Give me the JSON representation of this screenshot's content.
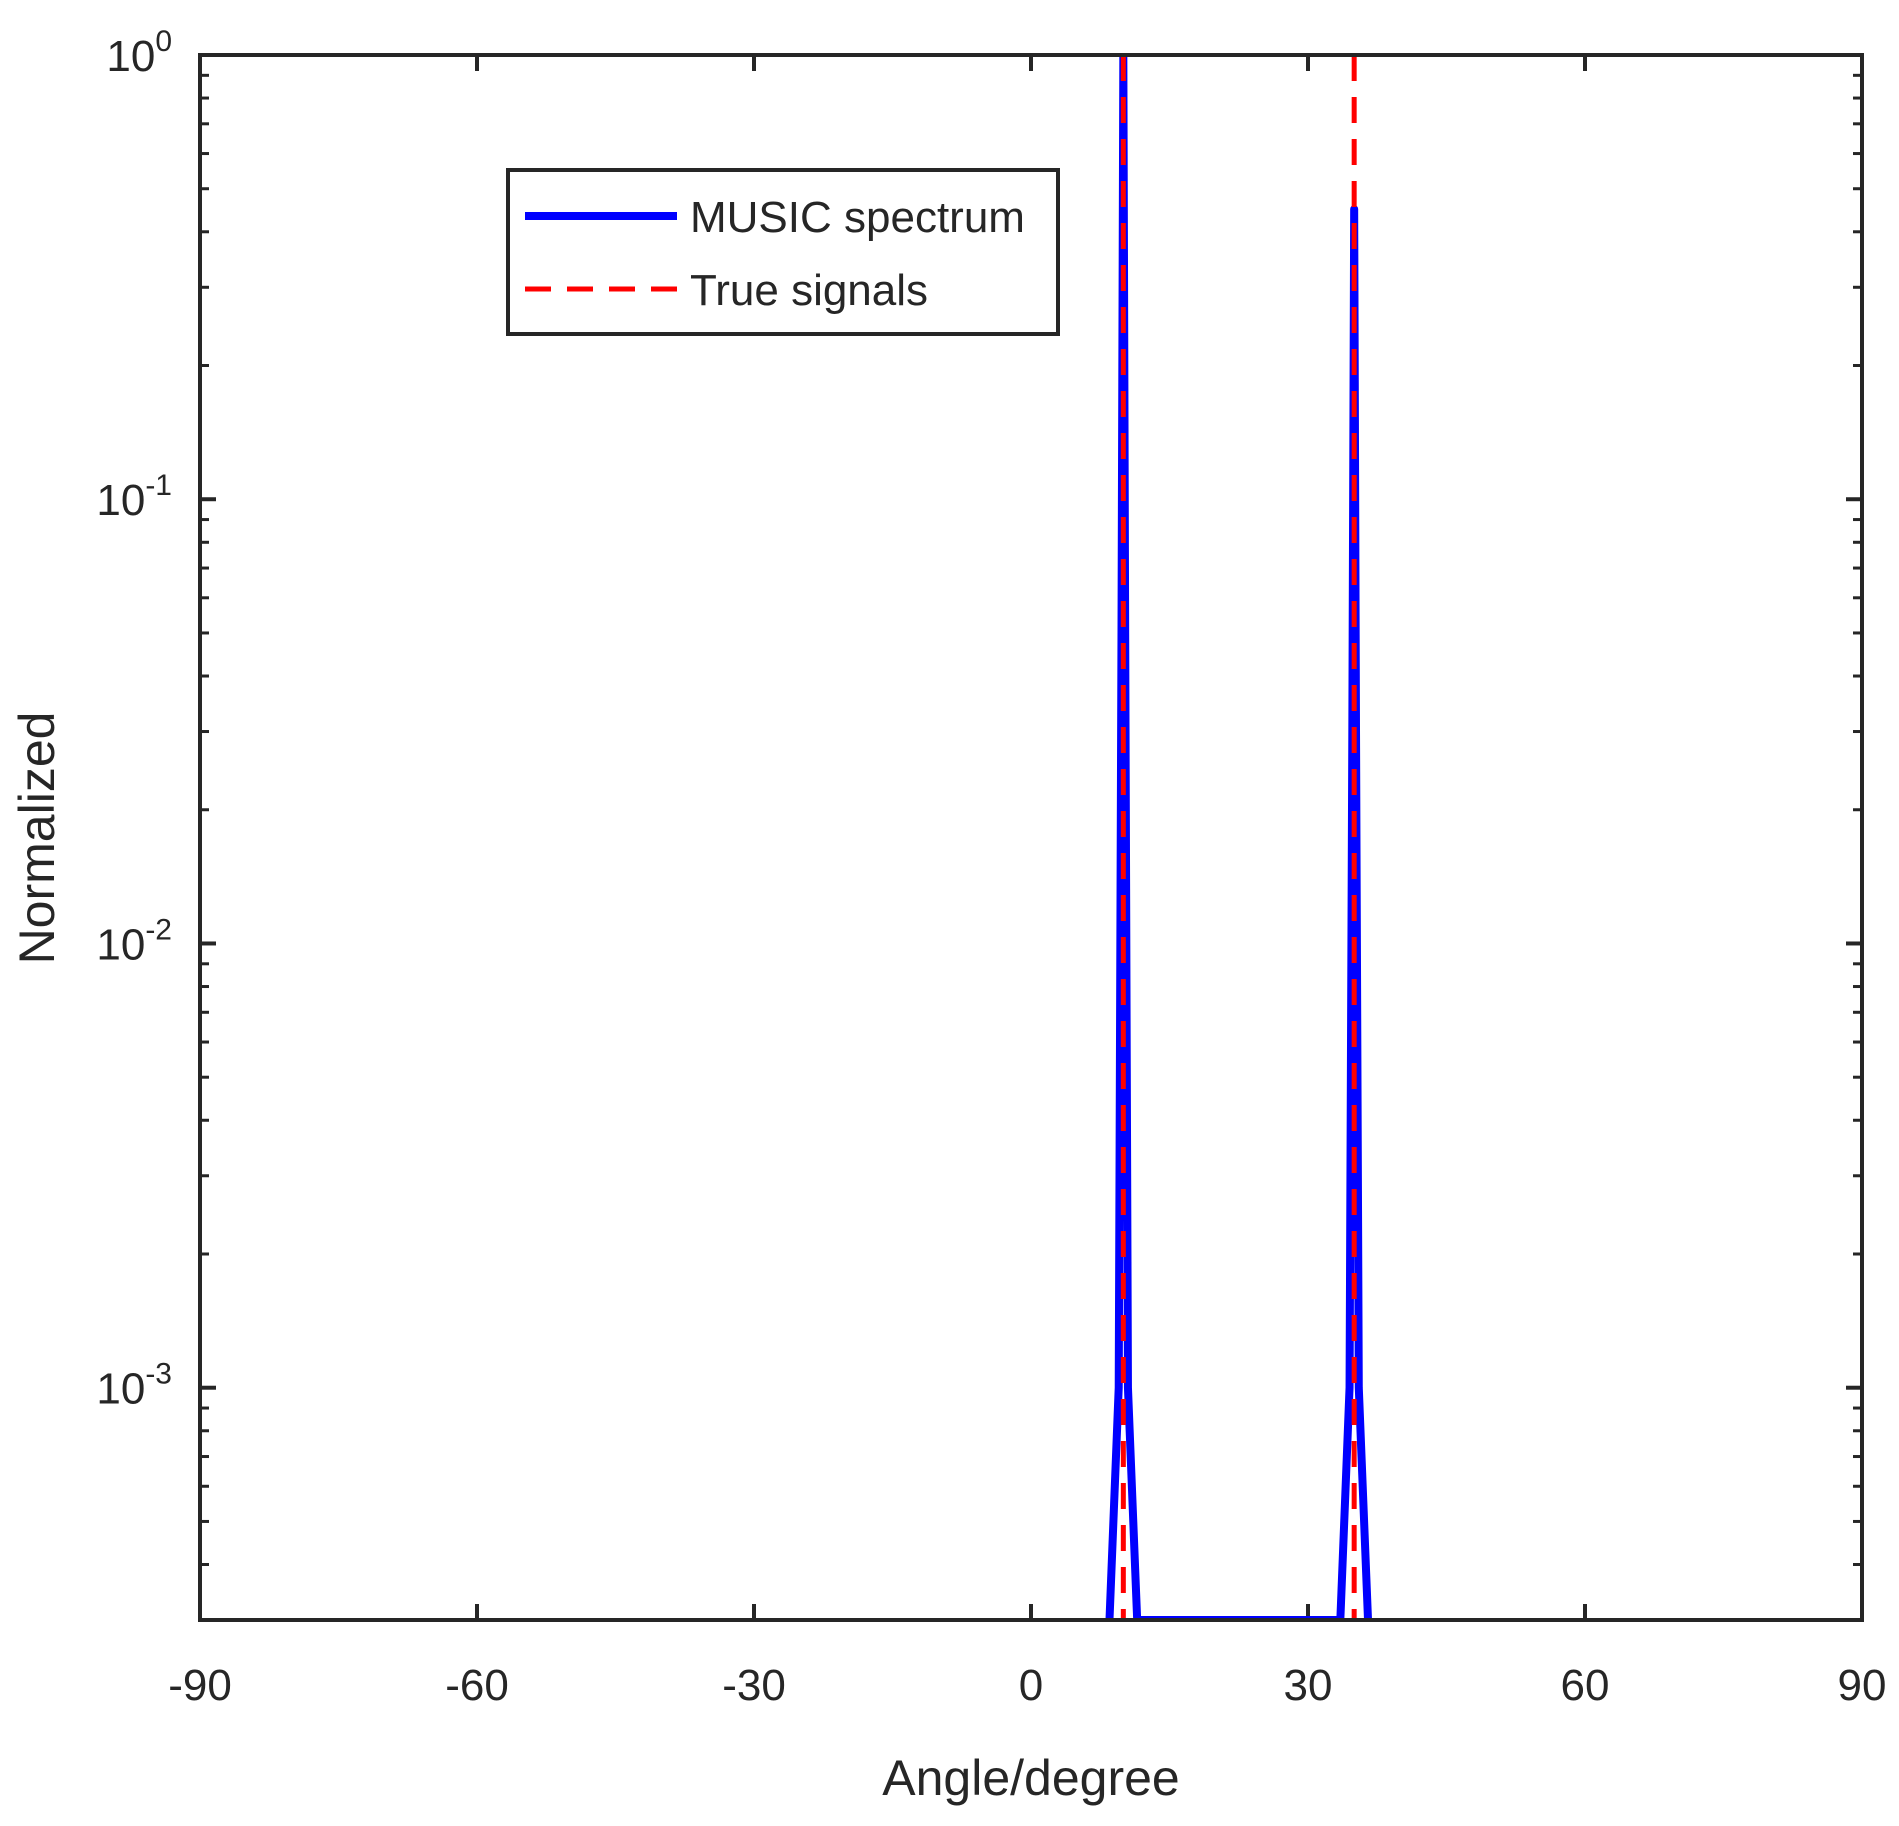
{
  "chart_data": {
    "type": "line",
    "title": "",
    "xlabel": "Angle/degree",
    "ylabel": "Normalized",
    "xlim": [
      -90,
      90
    ],
    "ylim": [
      0.0003,
      1
    ],
    "yscale": "log",
    "xticks": [
      -90,
      -60,
      -30,
      0,
      30,
      60,
      90
    ],
    "xtick_labels": [
      "-90",
      "-60",
      "-30",
      "0",
      "30",
      "60",
      "90"
    ],
    "yticks": [
      {
        "value": 1,
        "base": "10",
        "exp": "0"
      },
      {
        "value": 0.1,
        "base": "10",
        "exp": "-1"
      },
      {
        "value": 0.01,
        "base": "10",
        "exp": "-2"
      },
      {
        "value": 0.001,
        "base": "10",
        "exp": "-3"
      }
    ],
    "grid": false,
    "legend": {
      "position": "top-left"
    },
    "series": [
      {
        "name": "MUSIC spectrum",
        "color": "#0000ff",
        "style": "solid",
        "x": [
          8.5,
          9.5,
          9.8,
          10,
          10.2,
          10.5,
          11.5,
          33.5,
          34.5,
          34.8,
          35,
          35.2,
          35.5,
          36.5
        ],
        "y": [
          0.0003,
          0.001,
          0.05,
          1,
          0.05,
          0.001,
          0.0003,
          0.0003,
          0.001,
          0.03,
          0.45,
          0.03,
          0.001,
          0.0003
        ]
      },
      {
        "name": "True signals",
        "color": "#ff0000",
        "style": "dashed",
        "x": [
          10,
          35
        ],
        "y": [
          1,
          1
        ]
      }
    ]
  }
}
